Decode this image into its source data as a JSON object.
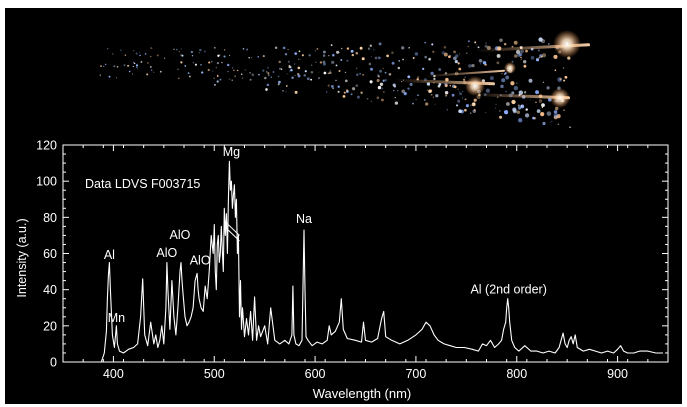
{
  "colors": {
    "background": "#000000",
    "foreground": "#ffffff",
    "photo_streak": "#f2b27a",
    "photo_particle": "#9fc0ff"
  },
  "chart_data": {
    "type": "line",
    "annotation_text": "Data LDVS F003715",
    "xlabel": "Wavelength (nm)",
    "ylabel": "Intensity (a.u.)",
    "xlim": [
      350,
      950
    ],
    "ylim": [
      0,
      120
    ],
    "xticks": [
      400,
      500,
      600,
      700,
      800,
      900
    ],
    "yticks": [
      0,
      20,
      40,
      60,
      80,
      100,
      120
    ],
    "grid": false,
    "peak_labels": [
      {
        "text": "Al",
        "x": 396,
        "y": 57
      },
      {
        "text": "Mn",
        "x": 403,
        "y": 22
      },
      {
        "text": "AlO",
        "x": 453,
        "y": 58
      },
      {
        "text": "AlO",
        "x": 466,
        "y": 68
      },
      {
        "text": "AlO",
        "x": 486,
        "y": 54
      },
      {
        "text": "Mg",
        "x": 517,
        "y": 114
      },
      {
        "text": "Na",
        "x": 589,
        "y": 77
      },
      {
        "text": "Al (2nd order)",
        "x": 792,
        "y": 38
      }
    ],
    "series": [
      {
        "x": [
          360,
          388,
          391,
          393,
          394,
          395,
          396,
          397,
          399,
          401,
          403,
          404,
          406,
          410,
          415,
          420,
          424,
          427,
          429,
          431,
          434,
          437,
          440,
          442,
          444,
          446,
          448,
          450,
          452,
          453,
          454,
          456,
          458,
          460,
          462,
          464,
          466,
          467,
          468,
          469,
          471,
          473,
          475,
          477,
          479,
          481,
          483,
          484,
          485,
          487,
          489,
          491,
          493,
          495,
          497,
          499,
          500,
          501,
          502,
          503,
          504,
          505,
          506,
          507,
          508,
          509,
          510,
          511,
          512,
          513,
          514,
          515,
          516,
          517,
          518,
          519,
          520,
          521,
          522,
          523,
          524,
          525,
          526,
          527,
          528,
          530,
          532,
          534,
          536,
          538,
          540,
          542,
          544,
          546,
          550,
          553,
          556,
          560,
          565,
          570,
          574,
          577,
          578,
          579,
          581,
          584,
          587,
          588,
          589,
          590,
          591,
          593,
          597,
          602,
          607,
          612,
          614,
          616,
          620,
          624,
          626,
          628,
          632,
          640,
          646,
          648,
          650,
          656,
          662,
          666,
          668,
          670,
          676,
          684,
          692,
          700,
          706,
          710,
          714,
          718,
          722,
          728,
          734,
          740,
          748,
          756,
          762,
          766,
          770,
          774,
          778,
          782,
          785,
          787,
          789,
          790,
          791,
          792,
          793,
          795,
          798,
          802,
          808,
          814,
          820,
          826,
          832,
          838,
          842,
          844,
          846,
          848,
          850,
          852,
          854,
          856,
          858,
          860,
          866,
          872,
          878,
          884,
          890,
          896,
          900,
          903,
          906,
          910,
          916,
          922,
          930,
          938,
          945
        ],
        "values": [
          0,
          0,
          5,
          17,
          35,
          48,
          55,
          40,
          15,
          8,
          20,
          10,
          6,
          5,
          7,
          8,
          10,
          25,
          46,
          15,
          9,
          22,
          10,
          15,
          8,
          12,
          20,
          10,
          30,
          55,
          40,
          18,
          45,
          25,
          15,
          30,
          50,
          55,
          45,
          38,
          25,
          20,
          22,
          25,
          30,
          45,
          49,
          40,
          35,
          30,
          28,
          42,
          35,
          50,
          70,
          60,
          76,
          50,
          40,
          65,
          70,
          55,
          60,
          75,
          62,
          50,
          85,
          70,
          82,
          60,
          90,
          111,
          95,
          100,
          85,
          92,
          98,
          80,
          90,
          60,
          70,
          25,
          45,
          18,
          30,
          14,
          24,
          15,
          28,
          12,
          36,
          12,
          20,
          14,
          20,
          10,
          30,
          12,
          10,
          12,
          10,
          15,
          42,
          15,
          10,
          9,
          12,
          42,
          73,
          40,
          14,
          12,
          9,
          11,
          10,
          12,
          20,
          15,
          17,
          22,
          35,
          18,
          13,
          12,
          11,
          22,
          12,
          11,
          13,
          24,
          28,
          14,
          12,
          10,
          12,
          15,
          18,
          22,
          20,
          15,
          12,
          10,
          9,
          8,
          8,
          7,
          6,
          10,
          9,
          12,
          8,
          10,
          12,
          18,
          22,
          30,
          35,
          30,
          22,
          12,
          8,
          6,
          9,
          6,
          6,
          5,
          6,
          5,
          8,
          12,
          16,
          10,
          8,
          12,
          14,
          10,
          15,
          8,
          6,
          7,
          6,
          5,
          6,
          5,
          7,
          9,
          6,
          5,
          5,
          6,
          6,
          5,
          5
        ]
      }
    ]
  }
}
